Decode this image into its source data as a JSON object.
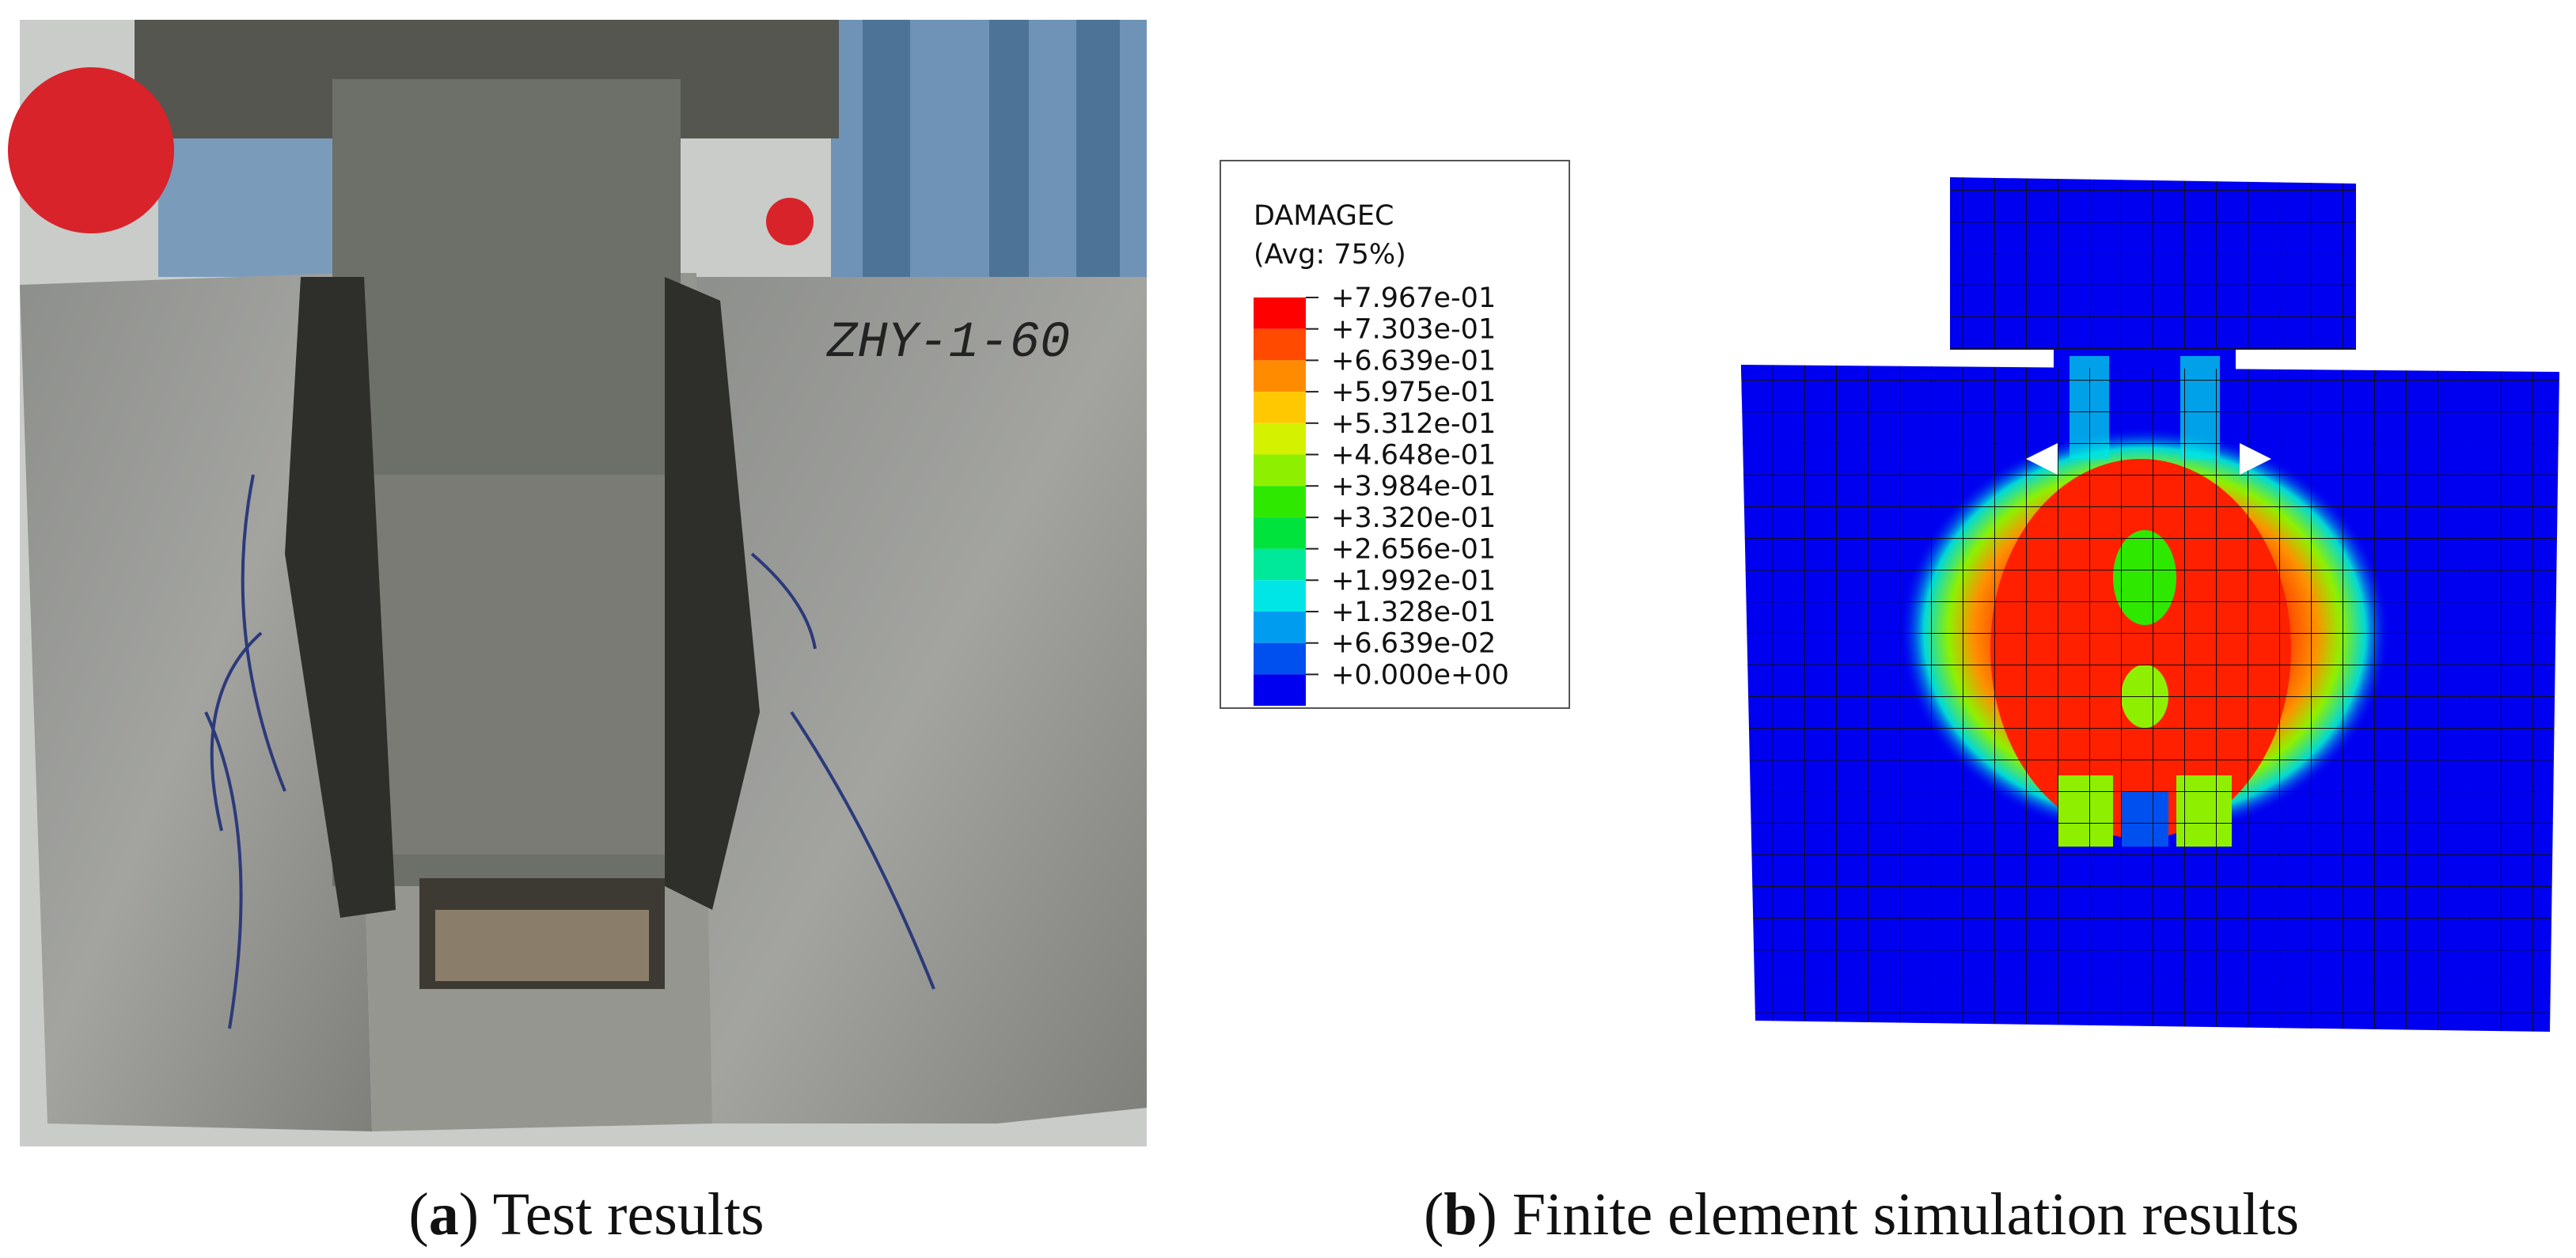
{
  "photo": {
    "specimen_label": "ZHY-1-60"
  },
  "legend": {
    "title": "DAMAGEC",
    "subtitle": "(Avg: 75%)",
    "values": [
      "+7.967e-01",
      "+7.303e-01",
      "+6.639e-01",
      "+5.975e-01",
      "+5.312e-01",
      "+4.648e-01",
      "+3.984e-01",
      "+3.320e-01",
      "+2.656e-01",
      "+1.992e-01",
      "+1.328e-01",
      "+6.639e-02",
      "+0.000e+00"
    ],
    "colors": [
      "#ff0000",
      "#ff4a00",
      "#ff8c00",
      "#ffc800",
      "#d4f200",
      "#8ef000",
      "#2ee800",
      "#00e23c",
      "#00e89a",
      "#00e6e6",
      "#009cf0",
      "#0050f0",
      "#0000f0"
    ]
  },
  "captions": [
    {
      "open": "(",
      "letter": "a",
      "rest": ") Test results"
    },
    {
      "open": "(",
      "letter": "b",
      "rest": ") Finite element simulation results"
    }
  ]
}
